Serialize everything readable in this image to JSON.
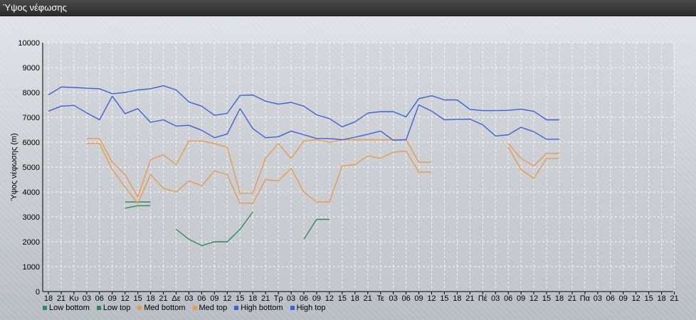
{
  "window": {
    "title": "Ύψος νέφωσης"
  },
  "chart_data": {
    "type": "line",
    "title": "",
    "xlabel": "",
    "ylabel": "Ύψος νέφωσης (m)",
    "ylim": [
      0,
      10000
    ],
    "yticks": [
      0,
      1000,
      2000,
      3000,
      4000,
      5000,
      6000,
      7000,
      8000,
      9000,
      10000
    ],
    "grid": true,
    "legend_position": "bottom-left",
    "x_tick_labels": [
      "18",
      "21",
      "Κυ",
      "03",
      "06",
      "09",
      "12",
      "15",
      "18",
      "21",
      "Δε",
      "03",
      "06",
      "09",
      "12",
      "15",
      "18",
      "21",
      "Τρ",
      "03",
      "06",
      "09",
      "12",
      "15",
      "18",
      "21",
      "Τε",
      "03",
      "06",
      "09",
      "12",
      "15",
      "18",
      "21",
      "Πέ",
      "03",
      "06",
      "09",
      "12",
      "15",
      "18",
      "21",
      "Πα",
      "03",
      "06",
      "09",
      "12",
      "15",
      "18",
      "21"
    ],
    "series": [
      {
        "name": "Low bottom",
        "color": "#2e8b57",
        "values": [
          null,
          null,
          null,
          null,
          null,
          null,
          3350,
          3450,
          3450,
          null,
          null,
          null,
          null,
          null,
          null,
          null,
          null,
          null,
          null,
          null,
          null,
          null,
          null,
          null,
          null,
          null,
          null,
          null,
          null,
          null,
          null,
          null,
          null,
          null,
          null,
          null,
          null,
          null,
          null,
          null,
          null,
          null,
          null,
          null,
          null,
          null,
          null,
          null,
          null,
          null
        ]
      },
      {
        "name": "Low top",
        "color": "#2e8b57",
        "values": [
          null,
          null,
          null,
          null,
          null,
          null,
          3600,
          3600,
          3600,
          null,
          2500,
          2100,
          1850,
          2000,
          2000,
          2500,
          3200,
          null,
          null,
          null,
          2100,
          2900,
          2900,
          null,
          null,
          null,
          null,
          null,
          null,
          null,
          null,
          null,
          null,
          null,
          null,
          null,
          null,
          null,
          null,
          null,
          null,
          null,
          null,
          null,
          null,
          null,
          null,
          null,
          null,
          null
        ]
      },
      {
        "name": "Med bottom",
        "color": "#e89a4e",
        "values": [
          null,
          null,
          null,
          5950,
          5950,
          4900,
          4200,
          3550,
          4700,
          4150,
          4000,
          4450,
          4250,
          4850,
          4700,
          3550,
          3550,
          4500,
          4450,
          4950,
          4000,
          3600,
          3600,
          5050,
          5100,
          5450,
          5350,
          5600,
          5650,
          4800,
          4800,
          null,
          null,
          null,
          null,
          null,
          5800,
          4900,
          4550,
          5350,
          5350,
          null,
          null,
          null,
          null,
          null,
          null,
          null,
          null,
          null
        ]
      },
      {
        "name": "Med top",
        "color": "#e89a4e",
        "values": [
          null,
          null,
          null,
          6150,
          6150,
          5200,
          4700,
          3800,
          5300,
          5500,
          5100,
          6050,
          6050,
          5950,
          5800,
          3950,
          3950,
          5350,
          5950,
          5350,
          6050,
          6100,
          6000,
          6100,
          6100,
          6100,
          6100,
          6100,
          6100,
          5200,
          5200,
          null,
          null,
          null,
          null,
          null,
          5950,
          5350,
          5050,
          5550,
          5550,
          null,
          null,
          null,
          null,
          null,
          null,
          null,
          null,
          null
        ]
      },
      {
        "name": "High bottom",
        "color": "#3b63d8",
        "values": [
          7250,
          7450,
          7480,
          7180,
          6900,
          7850,
          7150,
          7350,
          6800,
          6900,
          6650,
          6680,
          6480,
          6180,
          6330,
          7350,
          6550,
          6180,
          6220,
          6450,
          6300,
          6150,
          6150,
          6100,
          6200,
          6320,
          6450,
          6080,
          6100,
          7500,
          7250,
          6900,
          6920,
          6930,
          6700,
          6250,
          6300,
          6600,
          6420,
          6120,
          6120,
          null,
          null,
          null,
          null,
          null,
          null,
          null,
          null,
          null
        ]
      },
      {
        "name": "High top",
        "color": "#3b63d8",
        "values": [
          7900,
          8220,
          8200,
          8170,
          8150,
          7950,
          8000,
          8100,
          8150,
          8270,
          8100,
          7620,
          7450,
          7080,
          7160,
          7880,
          7900,
          7650,
          7530,
          7600,
          7450,
          7100,
          6950,
          6620,
          6820,
          7170,
          7230,
          7230,
          7020,
          7750,
          7870,
          7700,
          7700,
          7320,
          7270,
          7270,
          7280,
          7330,
          7240,
          6900,
          6900,
          null,
          null,
          null,
          null,
          null,
          null,
          null,
          null,
          null
        ]
      }
    ]
  }
}
